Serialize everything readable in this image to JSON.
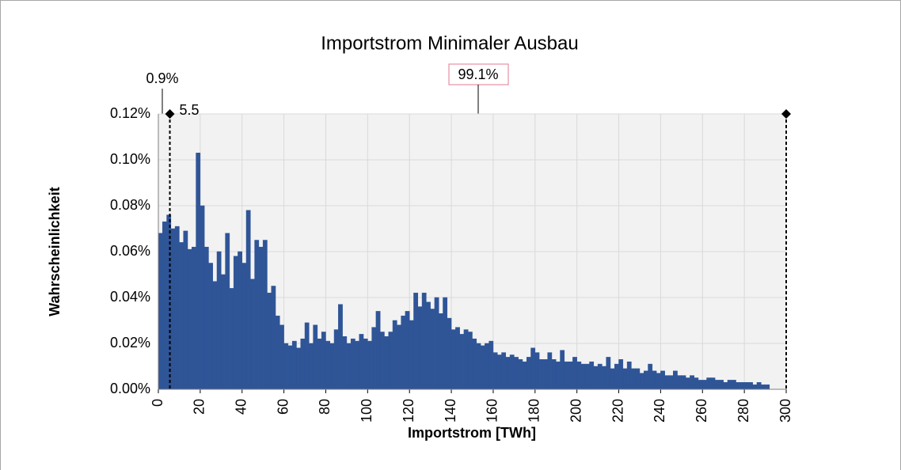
{
  "chart_data": {
    "type": "histogram",
    "title": "Importstrom Minimaler Ausbau",
    "x_label": "Importstrom [TWh]",
    "y_label": "Wahrscheinlichkeit",
    "color": "#2f5597",
    "bins": [
      0,
      2,
      4,
      6,
      8,
      10,
      12,
      14,
      16,
      18,
      20,
      22,
      24,
      26,
      28,
      30,
      32,
      34,
      36,
      38,
      40,
      42,
      44,
      46,
      48,
      50,
      52,
      54,
      56,
      58,
      60,
      62,
      64,
      66,
      68,
      70,
      72,
      74,
      76,
      78,
      80,
      82,
      84,
      86,
      88,
      90,
      92,
      94,
      96,
      98,
      100,
      102,
      104,
      106,
      108,
      110,
      112,
      114,
      116,
      118,
      120,
      122,
      124,
      126,
      128,
      130,
      132,
      134,
      136,
      138,
      140,
      142,
      144,
      146,
      148,
      150,
      152,
      154,
      156,
      158,
      160,
      162,
      164,
      166,
      168,
      170,
      172,
      174,
      176,
      178,
      180,
      182,
      184,
      186,
      188,
      190,
      192,
      194,
      196,
      198,
      200,
      202,
      204,
      206,
      208,
      210,
      212,
      214,
      216,
      218,
      220,
      222,
      224,
      226,
      228,
      230,
      232,
      234,
      236,
      238,
      240,
      242,
      244,
      246,
      248,
      250,
      252,
      254,
      256,
      258,
      260,
      262,
      264,
      266,
      268,
      270,
      272,
      274,
      276,
      278,
      280,
      282,
      284,
      286,
      288,
      290,
      292
    ],
    "values": [
      0.068,
      0.073,
      0.076,
      0.07,
      0.071,
      0.064,
      0.069,
      0.061,
      0.062,
      0.103,
      0.08,
      0.062,
      0.055,
      0.047,
      0.06,
      0.05,
      0.068,
      0.044,
      0.058,
      0.06,
      0.055,
      0.078,
      0.048,
      0.065,
      0.062,
      0.065,
      0.042,
      0.045,
      0.032,
      0.028,
      0.02,
      0.019,
      0.021,
      0.018,
      0.022,
      0.029,
      0.02,
      0.028,
      0.022,
      0.025,
      0.021,
      0.02,
      0.026,
      0.037,
      0.023,
      0.02,
      0.022,
      0.021,
      0.024,
      0.022,
      0.021,
      0.027,
      0.034,
      0.025,
      0.023,
      0.025,
      0.03,
      0.028,
      0.032,
      0.034,
      0.03,
      0.042,
      0.036,
      0.042,
      0.038,
      0.035,
      0.04,
      0.033,
      0.04,
      0.031,
      0.026,
      0.027,
      0.024,
      0.026,
      0.025,
      0.022,
      0.02,
      0.019,
      0.02,
      0.021,
      0.016,
      0.015,
      0.016,
      0.014,
      0.015,
      0.014,
      0.013,
      0.012,
      0.014,
      0.018,
      0.016,
      0.013,
      0.013,
      0.016,
      0.013,
      0.012,
      0.017,
      0.012,
      0.012,
      0.014,
      0.012,
      0.011,
      0.011,
      0.012,
      0.01,
      0.011,
      0.01,
      0.014,
      0.009,
      0.011,
      0.013,
      0.009,
      0.012,
      0.009,
      0.009,
      0.007,
      0.008,
      0.011,
      0.008,
      0.007,
      0.008,
      0.006,
      0.006,
      0.008,
      0.006,
      0.006,
      0.005,
      0.006,
      0.005,
      0.004,
      0.004,
      0.005,
      0.005,
      0.004,
      0.004,
      0.003,
      0.004,
      0.004,
      0.003,
      0.003,
      0.003,
      0.003,
      0.002,
      0.003,
      0.002,
      0.002
    ],
    "markers": {
      "x": [
        5.5,
        300
      ],
      "y": [
        0.12,
        0.12
      ],
      "color": "#000000"
    },
    "annotations": [
      "0.9%",
      "99.1%"
    ],
    "xlim": [
      0,
      300
    ],
    "xticks": [
      0,
      20,
      40,
      60,
      80,
      100,
      120,
      140,
      160,
      180,
      200,
      220,
      240,
      260,
      280,
      300
    ],
    "ylim": [
      0,
      0.12
    ],
    "yticks": [
      {
        "value": 0,
        "label": "0.00%"
      },
      {
        "value": 0.02,
        "label": "0.02%"
      },
      {
        "value": 0.04,
        "label": "0.04%"
      },
      {
        "value": 0.06,
        "label": "0.06%"
      },
      {
        "value": 0.08,
        "label": "0.08%"
      },
      {
        "value": 0.1,
        "label": "0.10%"
      },
      {
        "value": 0.12,
        "label": "0.12%"
      }
    ],
    "grid": true
  }
}
